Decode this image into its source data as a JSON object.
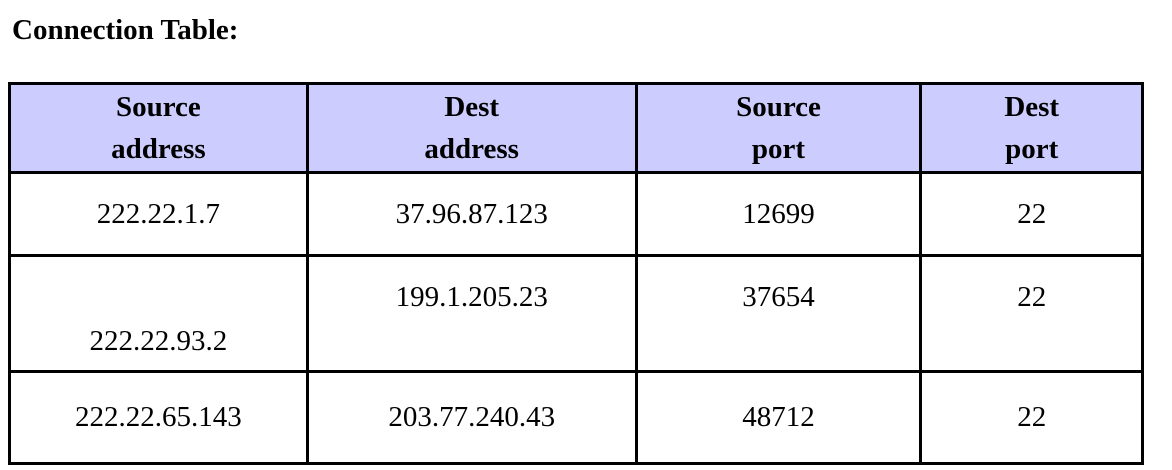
{
  "heading": "Connection Table:",
  "table": {
    "headers": [
      {
        "line1": "Source",
        "line2": "address"
      },
      {
        "line1": "Dest",
        "line2": "address"
      },
      {
        "line1": "Source",
        "line2": "port"
      },
      {
        "line1": "Dest",
        "line2": "port"
      }
    ],
    "rows": [
      {
        "source_address": "222.22.1.7",
        "dest_address": "37.96.87.123",
        "source_port": "12699",
        "dest_port": "22"
      },
      {
        "source_address": "222.22.93.2",
        "dest_address": "199.1.205.23",
        "source_port": "37654",
        "dest_port": "22"
      },
      {
        "source_address": "222.22.65.143",
        "dest_address": "203.77.240.43",
        "source_port": "48712",
        "dest_port": "22"
      }
    ]
  },
  "colors": {
    "header_background": "#ccccff",
    "border": "#000000",
    "cell_background": "#ffffff"
  }
}
